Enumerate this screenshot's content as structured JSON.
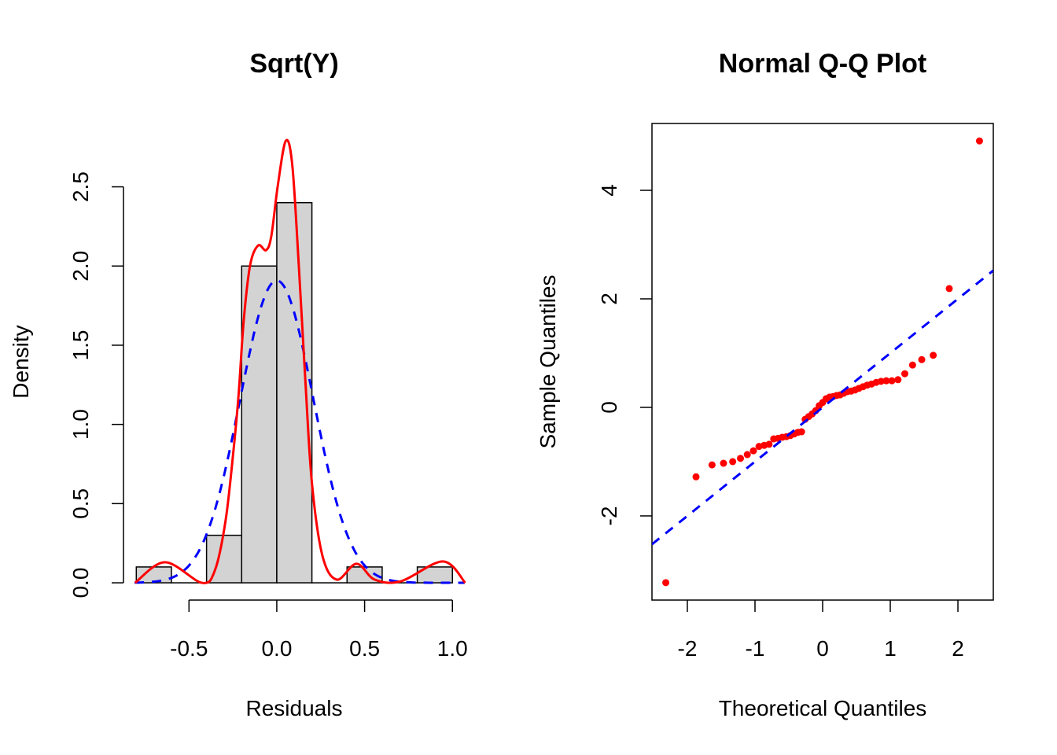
{
  "chart_data": [
    {
      "type": "bar",
      "title": "Sqrt(Y)",
      "xlabel": "Residuals",
      "ylabel": "Density",
      "histogram": {
        "bin_edges": [
          -0.8,
          -0.6,
          -0.4,
          -0.2,
          0.0,
          0.2,
          0.4,
          0.6,
          0.8,
          1.0
        ],
        "density": [
          0.1,
          0.0,
          0.3,
          2.0,
          2.4,
          0.0,
          0.1,
          0.0,
          0.1
        ],
        "fill": "#D3D3D3"
      },
      "kernel_density": {
        "color": "#FF0000",
        "x": [
          -0.807,
          -0.636,
          -0.427,
          -0.352,
          -0.292,
          -0.248,
          -0.218,
          -0.188,
          -0.151,
          -0.106,
          -0.061,
          -0.031,
          0.006,
          0.051,
          0.088,
          0.125,
          0.163,
          0.2,
          0.26,
          0.342,
          0.454,
          0.558,
          0.708,
          0.946,
          1.073
        ],
        "y": [
          0.0,
          0.13,
          0.0,
          0.08,
          0.39,
          0.82,
          1.18,
          1.66,
          2.01,
          2.13,
          2.1,
          2.19,
          2.51,
          2.79,
          2.64,
          2.01,
          1.27,
          0.63,
          0.17,
          0.02,
          0.12,
          0.02,
          0.01,
          0.135,
          0.0
        ]
      },
      "normal_curve": {
        "color": "#0000FF",
        "style": "dashed",
        "mean": 0.0,
        "sd": 0.209
      },
      "xticks": [
        "-0.5",
        "0.0",
        "0.5",
        "1.0"
      ],
      "xtick_values": [
        -0.5,
        0.0,
        0.5,
        1.0
      ],
      "yticks": [
        "0.0",
        "0.5",
        "1.0",
        "1.5",
        "2.0",
        "2.5"
      ],
      "ytick_values": [
        0.0,
        0.5,
        1.0,
        1.5,
        2.0,
        2.5
      ],
      "xlim": [
        -0.873,
        1.075
      ],
      "ylim": [
        -0.109,
        2.9
      ]
    },
    {
      "type": "scatter",
      "title": "Normal Q-Q Plot",
      "xlabel": "Theoretical Quantiles",
      "ylabel": "Sample Quantiles",
      "point_color": "#FF0000",
      "sample_quantiles": [
        -3.23,
        -1.28,
        -1.06,
        -1.03,
        -1.0,
        -0.94,
        -0.87,
        -0.8,
        -0.72,
        -0.7,
        -0.68,
        -0.58,
        -0.57,
        -0.55,
        -0.54,
        -0.52,
        -0.49,
        -0.46,
        -0.45,
        -0.22,
        -0.17,
        -0.12,
        -0.06,
        0.03,
        0.09,
        0.16,
        0.19,
        0.2,
        0.22,
        0.23,
        0.26,
        0.29,
        0.3,
        0.32,
        0.35,
        0.38,
        0.41,
        0.43,
        0.46,
        0.48,
        0.49,
        0.49,
        0.51,
        0.62,
        0.78,
        0.88,
        0.96,
        2.19,
        4.91
      ],
      "reference_line": {
        "color": "#0000FF",
        "style": "dashed",
        "intercept": 0,
        "slope": 1
      },
      "xticks": [
        "-2",
        "-1",
        "0",
        "1",
        "2"
      ],
      "xtick_values": [
        -2,
        -1,
        0,
        1,
        2
      ],
      "yticks": [
        "-2",
        "0",
        "2",
        "4"
      ],
      "ytick_values": [
        -2,
        0,
        2,
        4
      ],
      "xlim": [
        -2.523,
        2.523
      ],
      "ylim": [
        -3.551,
        5.232
      ],
      "box": true
    }
  ]
}
